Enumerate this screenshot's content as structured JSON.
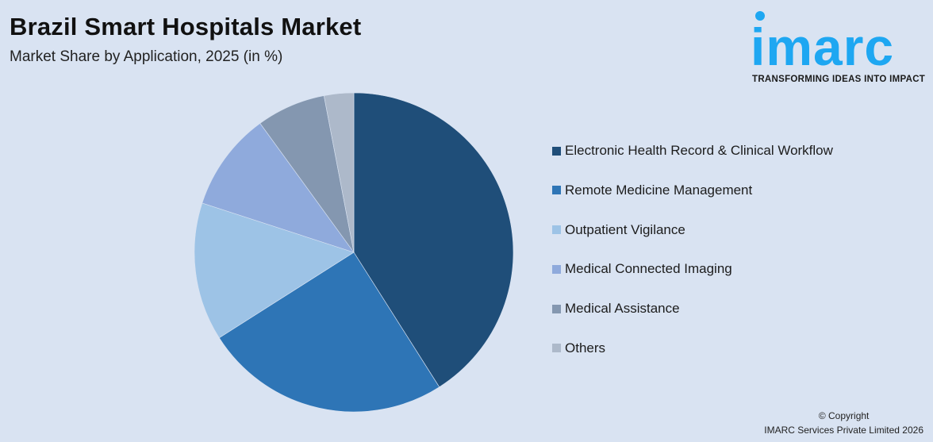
{
  "header": {
    "title": "Brazil Smart Hospitals Market",
    "subtitle": "Market Share by Application, 2025 (in %)"
  },
  "logo": {
    "wordmark": "imarc",
    "tagline": "TRANSFORMING IDEAS INTO IMPACT",
    "color": "#1ea7f2"
  },
  "footer": {
    "line1": "© Copyright",
    "line2": "IMARC Services Private Limited 2026"
  },
  "legend": [
    {
      "label": "Electronic Health Record & Clinical Workflow",
      "color": "#1f4e79"
    },
    {
      "label": "Remote Medicine Management",
      "color": "#2e75b6"
    },
    {
      "label": "Outpatient Vigilance",
      "color": "#9dc3e6"
    },
    {
      "label": "Medical Connected Imaging",
      "color": "#8faadc"
    },
    {
      "label": "Medical Assistance",
      "color": "#8497b0"
    },
    {
      "label": "Others",
      "color": "#adb9ca"
    }
  ],
  "chart_data": {
    "type": "pie",
    "title": "Brazil Smart Hospitals Market",
    "subtitle": "Market Share by Application, 2025 (in %)",
    "categories": [
      "Electronic Health Record & Clinical Workflow",
      "Remote Medicine Management",
      "Outpatient Vigilance",
      "Medical Connected Imaging",
      "Medical Assistance",
      "Others"
    ],
    "values": [
      41,
      25,
      14,
      10,
      7,
      3
    ],
    "colors": [
      "#1f4e79",
      "#2e75b6",
      "#9dc3e6",
      "#8faadc",
      "#8497b0",
      "#adb9ca"
    ],
    "start_angle": "12 o'clock, clockwise",
    "legend_position": "right",
    "data_labels": false
  }
}
